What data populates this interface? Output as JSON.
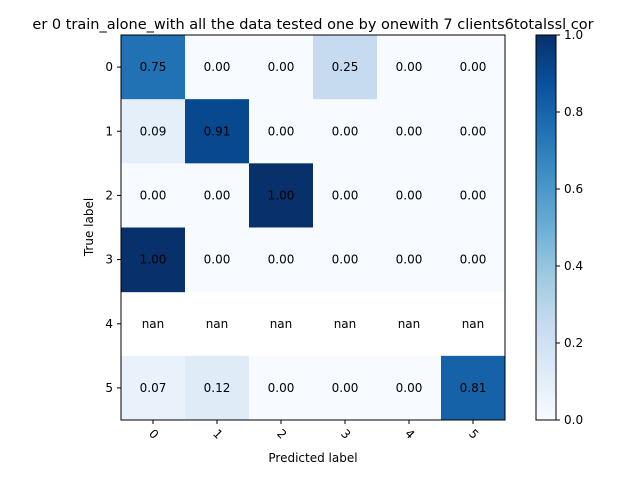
{
  "chart_data": {
    "type": "heatmap",
    "title": "er 0  train_alone_with all the data tested one by onewith 7 clients6totalssl cor",
    "xlabel": "Predicted label",
    "ylabel": "True label",
    "x_ticks": [
      "0",
      "1",
      "2",
      "3",
      "4",
      "5"
    ],
    "y_ticks": [
      "0",
      "1",
      "2",
      "3",
      "4",
      "5"
    ],
    "values": [
      [
        0.75,
        0.0,
        0.0,
        0.25,
        0.0,
        0.0
      ],
      [
        0.09,
        0.91,
        0.0,
        0.0,
        0.0,
        0.0
      ],
      [
        0.0,
        0.0,
        1.0,
        0.0,
        0.0,
        0.0
      ],
      [
        1.0,
        0.0,
        0.0,
        0.0,
        0.0,
        0.0
      ],
      [
        null,
        null,
        null,
        null,
        null,
        null
      ],
      [
        0.07,
        0.12,
        0.0,
        0.0,
        0.0,
        0.81
      ]
    ],
    "cell_labels": [
      [
        "0.75",
        "0.00",
        "0.00",
        "0.25",
        "0.00",
        "0.00"
      ],
      [
        "0.09",
        "0.91",
        "0.00",
        "0.00",
        "0.00",
        "0.00"
      ],
      [
        "0.00",
        "0.00",
        "1.00",
        "0.00",
        "0.00",
        "0.00"
      ],
      [
        "1.00",
        "0.00",
        "0.00",
        "0.00",
        "0.00",
        "0.00"
      ],
      [
        "nan",
        "nan",
        "nan",
        "nan",
        "nan",
        "nan"
      ],
      [
        "0.07",
        "0.12",
        "0.00",
        "0.00",
        "0.00",
        "0.81"
      ]
    ],
    "colormap": "Blues",
    "colorbar": {
      "range": [
        0.0,
        1.0
      ],
      "ticks": [
        "0.0",
        "0.2",
        "0.4",
        "0.6",
        "0.8",
        "1.0"
      ]
    },
    "grid": false
  }
}
